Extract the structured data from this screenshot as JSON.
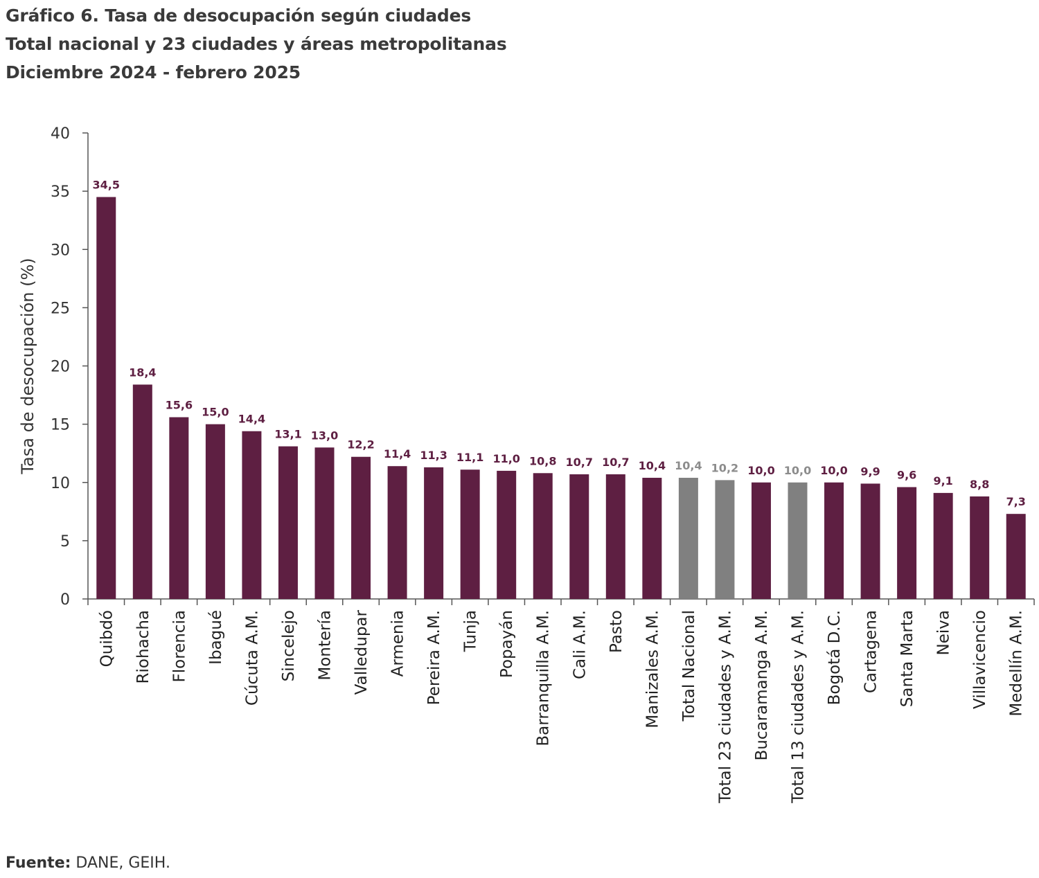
{
  "title": {
    "line1": "Gráfico 6. Tasa de desocupación según ciudades",
    "line2": "Total nacional y 23 ciudades y áreas metropolitanas",
    "line3": "Diciembre 2024 - febrero 2025"
  },
  "source": {
    "label": "Fuente:",
    "text": " DANE, GEIH."
  },
  "colors": {
    "city": "#5e1f42",
    "total": "#808080",
    "axis": "#555555",
    "city_label": "#5e1f42",
    "total_label": "#8c8c8c"
  },
  "chart_data": {
    "type": "bar",
    "ylabel": "Tasa de desocupación (%)",
    "xlabel": "",
    "ylim": [
      0,
      40
    ],
    "yticks": [
      0,
      5,
      10,
      15,
      20,
      25,
      30,
      35,
      40
    ],
    "grid": false,
    "categories": [
      "Quibdó",
      "Riohacha",
      "Florencia",
      "Ibagué",
      "Cúcuta A.M.",
      "Sincelejo",
      "Montería",
      "Valledupar",
      "Armenia",
      "Pereira A.M.",
      "Tunja",
      "Popayán",
      "Barranquilla A.M.",
      "Cali A.M.",
      "Pasto",
      "Manizales A.M.",
      "Total Nacional",
      "Total 23 ciudades y A.M.",
      "Bucaramanga A.M.",
      "Total 13 ciudades y A.M.",
      "Bogotá D.C.",
      "Cartagena",
      "Santa Marta",
      "Neiva",
      "Villavicencio",
      "Medellín A.M."
    ],
    "values": [
      34.5,
      18.4,
      15.6,
      15.0,
      14.4,
      13.1,
      13.0,
      12.2,
      11.4,
      11.3,
      11.1,
      11.0,
      10.8,
      10.7,
      10.7,
      10.4,
      10.4,
      10.2,
      10.0,
      10.0,
      10.0,
      9.9,
      9.6,
      9.1,
      8.8,
      7.3
    ],
    "value_labels": [
      "34,5",
      "18,4",
      "15,6",
      "15,0",
      "14,4",
      "13,1",
      "13,0",
      "12,2",
      "11,4",
      "11,3",
      "11,1",
      "11,0",
      "10,8",
      "10,7",
      "10,7",
      "10,4",
      "10,4",
      "10,2",
      "10,0",
      "10,0",
      "10,0",
      "9,9",
      "9,6",
      "9,1",
      "8,8",
      "7,3"
    ],
    "is_total": [
      false,
      false,
      false,
      false,
      false,
      false,
      false,
      false,
      false,
      false,
      false,
      false,
      false,
      false,
      false,
      false,
      true,
      true,
      false,
      true,
      false,
      false,
      false,
      false,
      false,
      false
    ]
  }
}
